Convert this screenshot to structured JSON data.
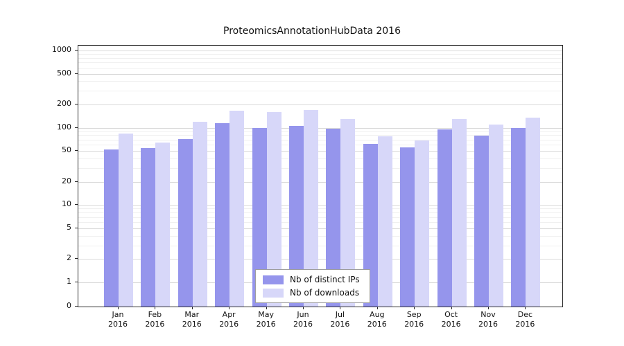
{
  "chart_data": {
    "type": "bar",
    "title": "ProteomicsAnnotationHubData 2016",
    "categories": [
      "Jan 2016",
      "Feb 2016",
      "Mar 2016",
      "Apr 2016",
      "May 2016",
      "Jun 2016",
      "Jul 2016",
      "Aug 2016",
      "Sep 2016",
      "Oct 2016",
      "Nov 2016",
      "Dec 2016"
    ],
    "series": [
      {
        "name": "Nb of distinct IPs",
        "color": "#9595ec",
        "values": [
          52,
          55,
          72,
          115,
          100,
          105,
          97,
          62,
          56,
          95,
          80,
          100
        ]
      },
      {
        "name": "Nb of downloads",
        "color": "#d7d7f9",
        "values": [
          85,
          65,
          120,
          165,
          160,
          170,
          130,
          78,
          68,
          130,
          110,
          135
        ]
      }
    ],
    "yscale": "log",
    "y_ticks": [
      0,
      1,
      2,
      5,
      10,
      20,
      50,
      100,
      200,
      500,
      1000
    ],
    "ylim": [
      0,
      1100
    ],
    "xlabel": "",
    "ylabel": "",
    "grid": true,
    "legend_position": "lower center"
  }
}
